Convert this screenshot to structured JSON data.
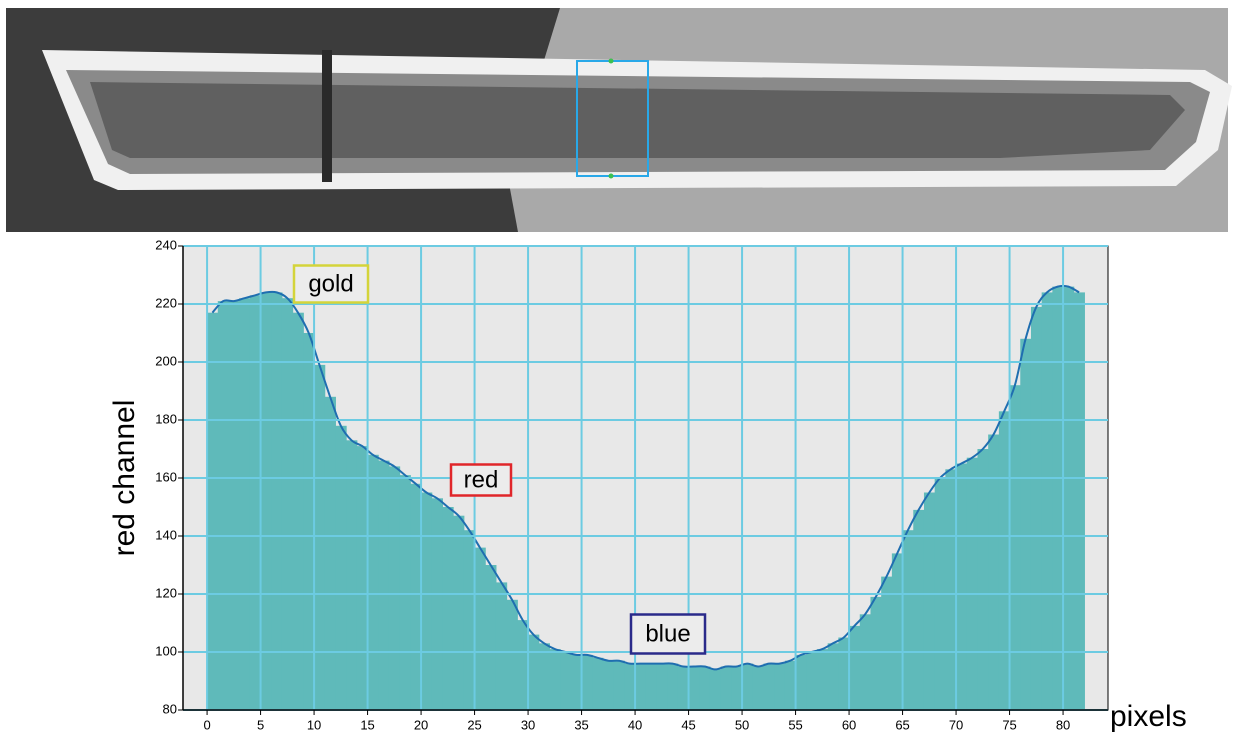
{
  "chart_data": {
    "type": "histogram",
    "xlabel": "pixels",
    "ylabel": "red channel",
    "bins": [
      0,
      1,
      2,
      3,
      4,
      5,
      6,
      7,
      8,
      9,
      10,
      11,
      12,
      13,
      14,
      15,
      16,
      17,
      18,
      19,
      20,
      21,
      22,
      23,
      24,
      25,
      26,
      27,
      28,
      29,
      30,
      31,
      32,
      33,
      34,
      35,
      36,
      37,
      38,
      39,
      40,
      41,
      42,
      43,
      44,
      45,
      46,
      47,
      48,
      49,
      50,
      51,
      52,
      53,
      54,
      55,
      56,
      57,
      58,
      59,
      60,
      61,
      62,
      63,
      64,
      65,
      66,
      67,
      68,
      69,
      70,
      71,
      72,
      73,
      74,
      75,
      76,
      77,
      78,
      79,
      80,
      81,
      82
    ],
    "values": [
      217,
      221,
      221,
      222,
      223,
      224,
      224,
      222,
      217,
      210,
      199,
      188,
      178,
      173,
      171,
      168,
      166,
      164,
      161,
      158,
      155,
      153,
      150,
      147,
      142,
      136,
      130,
      124,
      118,
      111,
      106,
      103,
      101,
      100,
      99,
      99,
      98,
      97,
      97,
      96,
      96,
      96,
      96,
      96,
      95,
      95,
      95,
      94,
      95,
      95,
      96,
      95,
      96,
      96,
      97,
      99,
      100,
      101,
      103,
      105,
      109,
      113,
      119,
      126,
      134,
      142,
      149,
      155,
      160,
      163,
      165,
      167,
      170,
      175,
      183,
      192,
      208,
      219,
      224,
      226,
      226,
      224
    ],
    "color": "#5fbaba",
    "line_color": "#1f6eb0",
    "xlim": [
      -2.25,
      84.2
    ],
    "ylim": [
      80,
      240
    ],
    "xticks": [
      0,
      5,
      10,
      15,
      20,
      25,
      30,
      35,
      40,
      45,
      50,
      55,
      60,
      65,
      70,
      75,
      80
    ],
    "yticks": [
      80,
      100,
      120,
      140,
      160,
      180,
      200,
      220,
      240
    ],
    "grid": true,
    "grid_color": "#6ccbe2",
    "annotations": [
      {
        "text": "gold",
        "color": "#d4d43a"
      },
      {
        "text": "red",
        "color": "#e0262a"
      },
      {
        "text": "blue",
        "color": "#2a2a8a"
      }
    ]
  }
}
